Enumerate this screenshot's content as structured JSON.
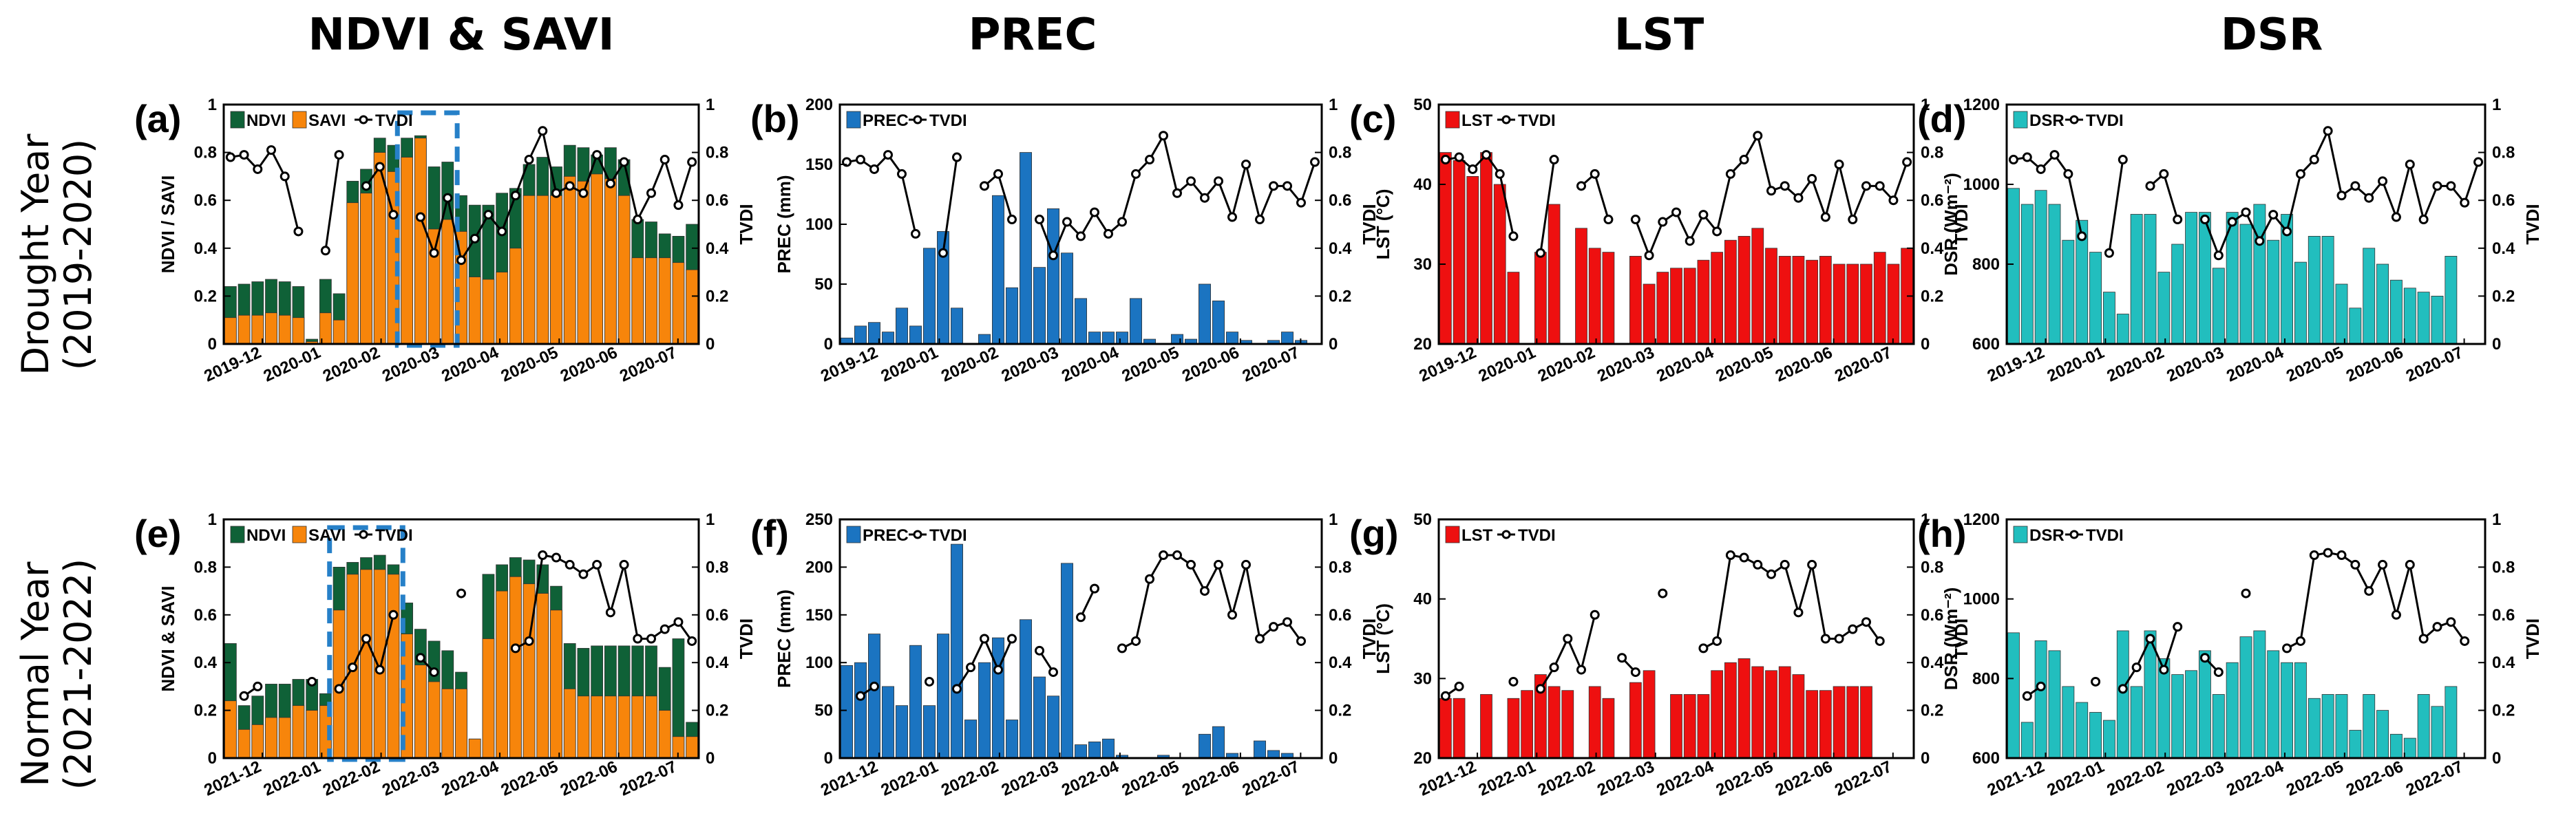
{
  "figure": {
    "column_titles": [
      "NDVI & SAVI",
      "PREC",
      "LST",
      "DSR"
    ],
    "row_titles": [
      [
        "Drought Year",
        "(2019-2020)"
      ],
      [
        "Normal Year",
        "(2021-2022)"
      ]
    ]
  },
  "colors": {
    "ndvi": "#0f6137",
    "savi": "#f7850b",
    "prec": "#1b74c1",
    "lst": "#ee1010",
    "dsr": "#22bebe",
    "tvdi": "#000000",
    "highlight": "#2680c8"
  },
  "chart_data": [
    {
      "id": "a",
      "label": "(a)",
      "type": "bar",
      "stacked": true,
      "row": 0,
      "col": 0,
      "ylabel": "NDVI / SAVI",
      "ylim": [
        0,
        1
      ],
      "yticks": [
        "0",
        "0.2",
        "0.4",
        "0.6",
        "0.8",
        "1"
      ],
      "y2label": "TVDI",
      "y2lim": [
        0,
        1
      ],
      "y2ticks": [
        "0",
        "0.2",
        "0.4",
        "0.6",
        "0.8",
        "1"
      ],
      "xticks": [
        "2019-12",
        "2020-01",
        "2020-02",
        "2020-03",
        "2020-04",
        "2020-05",
        "2020-06",
        "2020-07"
      ],
      "legend": [
        "NDVI",
        "SAVI",
        "TVDI"
      ],
      "highlight": [
        13,
        16
      ],
      "series": [
        {
          "name": "SAVI",
          "values": [
            0.11,
            0.12,
            0.12,
            0.13,
            0.12,
            0.11,
            0.01,
            0.13,
            0.1,
            0.59,
            0.63,
            0.8,
            0.72,
            0.78,
            0.86,
            0.48,
            0.52,
            0.47,
            0.28,
            0.27,
            0.3,
            0.4,
            0.62,
            0.62,
            0.62,
            0.7,
            0.68,
            0.71,
            0.69,
            0.62,
            0.36,
            0.36,
            0.36,
            0.34,
            0.31
          ]
        },
        {
          "name": "NDVI",
          "values": [
            0.24,
            0.25,
            0.26,
            0.27,
            0.26,
            0.24,
            0.02,
            0.27,
            0.21,
            0.68,
            0.73,
            0.86,
            0.83,
            0.86,
            0.87,
            0.74,
            0.76,
            0.62,
            0.58,
            0.58,
            0.63,
            0.65,
            0.75,
            0.78,
            0.74,
            0.83,
            0.82,
            0.79,
            0.82,
            0.77,
            0.52,
            0.51,
            0.46,
            0.45,
            0.5
          ]
        },
        {
          "name": "TVDI",
          "values": [
            0.78,
            0.79,
            0.73,
            0.81,
            0.7,
            0.47,
            null,
            0.39,
            0.79,
            null,
            0.66,
            0.74,
            0.54,
            null,
            0.53,
            0.38,
            0.61,
            0.35,
            0.44,
            0.54,
            0.47,
            0.62,
            0.77,
            0.89,
            0.63,
            0.66,
            0.63,
            0.79,
            0.67,
            0.76,
            0.52,
            0.63,
            0.77,
            0.58,
            0.76
          ]
        }
      ]
    },
    {
      "id": "b",
      "label": "(b)",
      "type": "bar",
      "row": 0,
      "col": 1,
      "ylabel": "PREC (mm)",
      "ylim": [
        0,
        200
      ],
      "yticks": [
        "0",
        "50",
        "100",
        "150",
        "200"
      ],
      "y2label": "TVDI",
      "y2lim": [
        0,
        1
      ],
      "y2ticks": [
        "0",
        "0.2",
        "0.4",
        "0.6",
        "0.8",
        "1"
      ],
      "xticks": [
        "2019-12",
        "2020-01",
        "2020-02",
        "2020-03",
        "2020-04",
        "2020-05",
        "2020-06",
        "2020-07"
      ],
      "legend": [
        "PREC",
        "TVDI"
      ],
      "series": [
        {
          "name": "PREC",
          "values": [
            5,
            15,
            18,
            10,
            30,
            15,
            80,
            94,
            30,
            0,
            8,
            124,
            47,
            160,
            64,
            113,
            76,
            38,
            10,
            10,
            10,
            38,
            4,
            0,
            8,
            4,
            50,
            36,
            10,
            3,
            0,
            3,
            10,
            3,
            0
          ]
        },
        {
          "name": "TVDI",
          "values": [
            0.76,
            0.77,
            0.73,
            0.79,
            0.71,
            0.46,
            null,
            0.38,
            0.78,
            null,
            0.66,
            0.71,
            0.52,
            null,
            0.52,
            0.37,
            0.51,
            0.45,
            0.55,
            0.46,
            0.51,
            0.71,
            0.77,
            0.87,
            0.63,
            0.68,
            0.61,
            0.68,
            0.53,
            0.75,
            0.52,
            0.66,
            0.66,
            0.59,
            0.76
          ]
        }
      ]
    },
    {
      "id": "c",
      "label": "(c)",
      "type": "bar",
      "row": 0,
      "col": 2,
      "ylabel": "LST (°C)",
      "ylim": [
        20,
        50
      ],
      "yticks": [
        "20",
        "30",
        "40",
        "50"
      ],
      "y2label": "TVDI",
      "y2lim": [
        0,
        1
      ],
      "y2ticks": [
        "0",
        "0.2",
        "0.4",
        "0.6",
        "0.8",
        "1"
      ],
      "xticks": [
        "2019-12",
        "2020-01",
        "2020-02",
        "2020-03",
        "2020-04",
        "2020-05",
        "2020-06",
        "2020-07"
      ],
      "legend": [
        "LST",
        "TVDI"
      ],
      "series": [
        {
          "name": "LST",
          "values": [
            44,
            43,
            41,
            44,
            40,
            29,
            null,
            31.5,
            37.5,
            null,
            34.5,
            32,
            31.5,
            null,
            31,
            27.5,
            29,
            29.5,
            29.5,
            30.5,
            31.5,
            33,
            33.5,
            34.5,
            32,
            31,
            31,
            30.5,
            31,
            30,
            30,
            30,
            31.5,
            30,
            32
          ]
        },
        {
          "name": "TVDI",
          "values": [
            0.77,
            0.78,
            0.73,
            0.79,
            0.71,
            0.45,
            null,
            0.38,
            0.77,
            null,
            0.66,
            0.71,
            0.52,
            null,
            0.52,
            0.37,
            0.51,
            0.55,
            0.43,
            0.54,
            0.47,
            0.71,
            0.77,
            0.87,
            0.64,
            0.66,
            0.61,
            0.69,
            0.53,
            0.75,
            0.52,
            0.66,
            0.66,
            0.6,
            0.76
          ]
        }
      ]
    },
    {
      "id": "d",
      "label": "(d)",
      "type": "bar",
      "row": 0,
      "col": 3,
      "ylabel": "DSR (Wm⁻²)",
      "ylim": [
        600,
        1200
      ],
      "yticks": [
        "600",
        "800",
        "1000",
        "1200"
      ],
      "y2label": "TVDI",
      "y2lim": [
        0,
        1
      ],
      "y2ticks": [
        "0",
        "0.2",
        "0.4",
        "0.6",
        "0.8",
        "1"
      ],
      "xticks": [
        "2019-12",
        "2020-01",
        "2020-02",
        "2020-03",
        "2020-04",
        "2020-05",
        "2020-06",
        "2020-07"
      ],
      "legend": [
        "DSR",
        "TVDI"
      ],
      "series": [
        {
          "name": "DSR",
          "values": [
            990,
            950,
            985,
            950,
            860,
            910,
            830,
            730,
            675,
            925,
            925,
            780,
            850,
            930,
            930,
            790,
            930,
            900,
            950,
            860,
            925,
            805,
            870,
            870,
            750,
            690,
            840,
            800,
            760,
            740,
            730,
            720,
            820,
            null,
            null
          ]
        },
        {
          "name": "TVDI",
          "values": [
            0.77,
            0.78,
            0.73,
            0.79,
            0.71,
            0.45,
            null,
            0.38,
            0.77,
            null,
            0.66,
            0.71,
            0.52,
            null,
            0.52,
            0.37,
            0.51,
            0.55,
            0.43,
            0.54,
            0.47,
            0.71,
            0.77,
            0.89,
            0.62,
            0.66,
            0.61,
            0.68,
            0.53,
            0.75,
            0.52,
            0.66,
            0.66,
            0.59,
            0.76
          ]
        }
      ]
    },
    {
      "id": "e",
      "label": "(e)",
      "type": "bar",
      "stacked": true,
      "row": 1,
      "col": 0,
      "ylabel": "NDVI & SAVI",
      "ylim": [
        0,
        1
      ],
      "yticks": [
        "0",
        "0.2",
        "0.4",
        "0.6",
        "0.8",
        "1"
      ],
      "y2label": "TVDI",
      "y2lim": [
        0,
        1
      ],
      "y2ticks": [
        "0",
        "0.2",
        "0.4",
        "0.6",
        "0.8",
        "1"
      ],
      "xticks": [
        "2021-12",
        "2022-01",
        "2022-02",
        "2022-03",
        "2022-04",
        "2022-05",
        "2022-06",
        "2022-07"
      ],
      "legend": [
        "NDVI",
        "SAVI",
        "TVDI"
      ],
      "highlight": [
        8,
        12
      ],
      "series": [
        {
          "name": "SAVI",
          "values": [
            0.24,
            0.12,
            0.14,
            0.17,
            0.17,
            0.22,
            0.2,
            0.22,
            0.62,
            0.77,
            0.79,
            0.79,
            0.77,
            0.52,
            0.39,
            0.32,
            0.29,
            0.29,
            0.08,
            0.5,
            0.7,
            0.76,
            0.73,
            0.69,
            0.62,
            0.29,
            0.26,
            0.26,
            0.26,
            0.26,
            0.26,
            0.26,
            0.2,
            0.09,
            0.09
          ]
        },
        {
          "name": "NDVI",
          "values": [
            0.48,
            0.22,
            0.26,
            0.31,
            0.31,
            0.33,
            0.33,
            0.27,
            0.8,
            0.82,
            0.84,
            0.85,
            0.81,
            0.65,
            0.54,
            0.49,
            0.45,
            0.36,
            0.08,
            0.77,
            0.81,
            0.84,
            0.83,
            0.81,
            0.72,
            0.48,
            0.46,
            0.47,
            0.47,
            0.47,
            0.47,
            0.47,
            0.38,
            0.5,
            0.15
          ]
        },
        {
          "name": "TVDI",
          "values": [
            null,
            0.26,
            0.3,
            null,
            null,
            null,
            0.32,
            null,
            0.29,
            0.38,
            0.5,
            0.37,
            0.6,
            null,
            0.42,
            0.36,
            null,
            0.69,
            null,
            null,
            null,
            0.46,
            0.49,
            0.85,
            0.84,
            0.81,
            0.77,
            0.81,
            0.61,
            0.81,
            0.5,
            0.5,
            0.54,
            0.57,
            0.49
          ]
        }
      ]
    },
    {
      "id": "f",
      "label": "(f)",
      "type": "bar",
      "row": 1,
      "col": 1,
      "ylabel": "PREC (mm)",
      "ylim": [
        0,
        250
      ],
      "yticks": [
        "0",
        "50",
        "100",
        "150",
        "200",
        "250"
      ],
      "y2label": "TVDI",
      "y2lim": [
        0,
        1
      ],
      "y2ticks": [
        "0",
        "0.2",
        "0.4",
        "0.6",
        "0.8",
        "1"
      ],
      "xticks": [
        "2021-12",
        "2022-01",
        "2022-02",
        "2022-03",
        "2022-04",
        "2022-05",
        "2022-06",
        "2022-07"
      ],
      "legend": [
        "PREC",
        "TVDI"
      ],
      "series": [
        {
          "name": "PREC",
          "values": [
            97,
            100,
            130,
            75,
            55,
            118,
            55,
            130,
            224,
            40,
            100,
            126,
            40,
            145,
            85,
            65,
            204,
            14,
            17,
            20,
            3,
            0,
            0,
            3,
            0,
            0,
            25,
            33,
            5,
            0,
            18,
            8,
            5,
            null,
            null
          ]
        },
        {
          "name": "TVDI",
          "values": [
            null,
            0.26,
            0.3,
            null,
            null,
            null,
            0.32,
            null,
            0.29,
            0.38,
            0.5,
            0.37,
            0.5,
            null,
            0.45,
            0.36,
            null,
            0.59,
            0.71,
            null,
            0.46,
            0.49,
            0.75,
            0.85,
            0.85,
            0.81,
            0.7,
            0.81,
            0.6,
            0.81,
            0.5,
            0.55,
            0.57,
            0.49,
            null
          ]
        }
      ]
    },
    {
      "id": "g",
      "label": "(g)",
      "type": "bar",
      "row": 1,
      "col": 2,
      "ylabel": "LST (°C)",
      "ylim": [
        20,
        50
      ],
      "yticks": [
        "20",
        "30",
        "40",
        "50"
      ],
      "y2label": "TVDI",
      "y2lim": [
        0,
        1
      ],
      "y2ticks": [
        "0",
        "0.2",
        "0.4",
        "0.6",
        "0.8",
        "1"
      ],
      "xticks": [
        "2021-12",
        "2022-01",
        "2022-02",
        "2022-03",
        "2022-04",
        "2022-05",
        "2022-06",
        "2022-07"
      ],
      "legend": [
        "LST",
        "TVDI"
      ],
      "series": [
        {
          "name": "LST",
          "values": [
            27.5,
            27.5,
            null,
            28,
            null,
            27.5,
            28.5,
            30.5,
            29,
            28.5,
            null,
            29,
            27.5,
            null,
            29.5,
            31,
            null,
            28,
            28,
            28,
            31,
            32,
            32.5,
            31.5,
            31,
            31.5,
            30.5,
            28.5,
            28.5,
            29,
            29,
            29,
            null,
            null,
            null
          ]
        },
        {
          "name": "TVDI",
          "values": [
            0.26,
            0.3,
            null,
            null,
            null,
            0.32,
            null,
            0.29,
            0.38,
            0.5,
            0.37,
            0.6,
            null,
            0.42,
            0.36,
            null,
            0.69,
            null,
            null,
            0.46,
            0.49,
            0.85,
            0.84,
            0.81,
            0.77,
            0.81,
            0.61,
            0.81,
            0.5,
            0.5,
            0.54,
            0.57,
            0.49,
            null,
            null
          ]
        }
      ]
    },
    {
      "id": "h",
      "label": "(h)",
      "type": "bar",
      "row": 1,
      "col": 3,
      "ylabel": "DSR (Wm⁻²)",
      "ylim": [
        600,
        1200
      ],
      "yticks": [
        "600",
        "800",
        "1000",
        "1200"
      ],
      "y2label": "TVDI",
      "y2lim": [
        0,
        1
      ],
      "y2ticks": [
        "0",
        "0.2",
        "0.4",
        "0.6",
        "0.8",
        "1"
      ],
      "xticks": [
        "2021-12",
        "2022-01",
        "2022-02",
        "2022-03",
        "2022-04",
        "2022-05",
        "2022-06",
        "2022-07"
      ],
      "legend": [
        "DSR",
        "TVDI"
      ],
      "series": [
        {
          "name": "DSR",
          "values": [
            915,
            690,
            895,
            870,
            780,
            740,
            715,
            695,
            920,
            780,
            920,
            850,
            810,
            820,
            870,
            760,
            840,
            905,
            920,
            870,
            840,
            840,
            750,
            760,
            760,
            670,
            760,
            720,
            660,
            650,
            760,
            730,
            780,
            null,
            null
          ]
        },
        {
          "name": "TVDI",
          "values": [
            null,
            0.26,
            0.3,
            null,
            null,
            null,
            0.32,
            null,
            0.29,
            0.38,
            0.5,
            0.37,
            0.55,
            null,
            0.42,
            0.36,
            null,
            0.69,
            null,
            null,
            0.46,
            0.49,
            0.85,
            0.86,
            0.85,
            0.81,
            0.7,
            0.81,
            0.6,
            0.81,
            0.5,
            0.55,
            0.57,
            0.49,
            null
          ]
        }
      ]
    }
  ]
}
